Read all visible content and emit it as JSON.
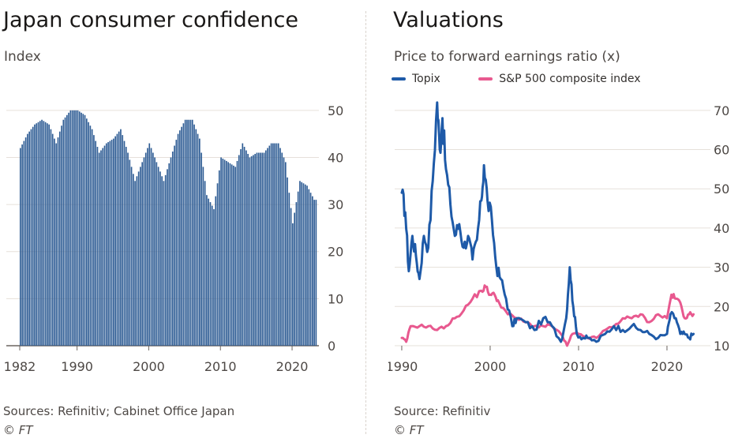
{
  "left": {
    "title": "Japan consumer confidence",
    "subtitle": "Index",
    "source": "Sources: Refinitiv; Cabinet Office Japan",
    "copyright": "© FT"
  },
  "right": {
    "title": "Valuations",
    "subtitle": "Price to forward earnings ratio (x)",
    "source": "Source: Refinitiv",
    "copyright": "© FT",
    "legend": [
      {
        "name": "Topix",
        "color": "#1e5aa8"
      },
      {
        "name": "S&P 500 composite index",
        "color": "#e8598f"
      }
    ]
  },
  "chart_data": [
    {
      "type": "bar",
      "title": "Japan consumer confidence",
      "ylabel": "Index",
      "ylim": [
        0,
        55
      ],
      "yticks": [
        0,
        10,
        20,
        30,
        40,
        50
      ],
      "xticks": [
        "1982",
        "1990",
        "2000",
        "2010",
        "2020"
      ],
      "grid": true,
      "bar_color": "#2e5c94",
      "x_start": 1982,
      "x_end": 2023.3,
      "series": [
        {
          "values": [
            [
              1982,
              42
            ],
            [
              1983,
              45
            ],
            [
              1984,
              47
            ],
            [
              1985,
              48
            ],
            [
              1986,
              47
            ],
            [
              1987,
              43
            ],
            [
              1988,
              48
            ],
            [
              1989,
              50
            ],
            [
              1990,
              50
            ],
            [
              1991,
              49
            ],
            [
              1992,
              46
            ],
            [
              1993,
              41
            ],
            [
              1994,
              43
            ],
            [
              1995,
              44
            ],
            [
              1996,
              46
            ],
            [
              1997,
              41
            ],
            [
              1998,
              35
            ],
            [
              1999,
              39
            ],
            [
              2000,
              43
            ],
            [
              2001,
              39
            ],
            [
              2002,
              35
            ],
            [
              2003,
              40
            ],
            [
              2004,
              45
            ],
            [
              2005,
              48
            ],
            [
              2006,
              48
            ],
            [
              2007,
              44
            ],
            [
              2008,
              32
            ],
            [
              2009,
              29
            ],
            [
              2010,
              40
            ],
            [
              2011,
              39
            ],
            [
              2012,
              38
            ],
            [
              2013,
              43
            ],
            [
              2014,
              40
            ],
            [
              2015,
              41
            ],
            [
              2016,
              41
            ],
            [
              2017,
              43
            ],
            [
              2018,
              43
            ],
            [
              2019,
              39
            ],
            [
              2020,
              26
            ],
            [
              2021,
              35
            ],
            [
              2022,
              34
            ],
            [
              2023,
              31
            ]
          ]
        }
      ]
    },
    {
      "type": "line",
      "title": "Valuations",
      "ylabel": "Price to forward earnings ratio (x)",
      "ylim": [
        10,
        75
      ],
      "yticks": [
        10,
        20,
        30,
        40,
        50,
        60,
        70
      ],
      "xticks": [
        "1990",
        "2000",
        "2010",
        "2020"
      ],
      "grid": true,
      "legend_position": "top-left",
      "series": [
        {
          "name": "Topix",
          "color": "#1e5aa8",
          "x": [
            1990,
            1990.4,
            1990.8,
            1991.2,
            1991.6,
            1992.0,
            1992.5,
            1993.0,
            1993.5,
            1994.0,
            1994.3,
            1994.6,
            1995.0,
            1995.5,
            1996.0,
            1996.5,
            1997.0,
            1997.5,
            1998.0,
            1998.5,
            1999.0,
            1999.3,
            1999.7,
            2000.2,
            2000.7,
            2001.2,
            2001.8,
            2002.5,
            2003.0,
            2004.0,
            2005.0,
            2006.0,
            2007.0,
            2008.0,
            2008.6,
            2009.0,
            2009.4,
            2009.8,
            2010.5,
            2011.0,
            2012.0,
            2013.0,
            2014.0,
            2015.0,
            2016.0,
            2017.0,
            2018.0,
            2019.0,
            2020.0,
            2020.4,
            2021.0,
            2021.5,
            2022.0,
            2022.5,
            2023.0
          ],
          "y": [
            49,
            44,
            29,
            38,
            33,
            27,
            38,
            35,
            52,
            72,
            60,
            68,
            55,
            46,
            38,
            41,
            35,
            38,
            32,
            37,
            47,
            56,
            47,
            42,
            30,
            27,
            22,
            15,
            17,
            16,
            14,
            17,
            15,
            11,
            17,
            30,
            20,
            13,
            12,
            12,
            11,
            13,
            15,
            14,
            15,
            14,
            13,
            12,
            13,
            18,
            17,
            13,
            13,
            12,
            13
          ]
        },
        {
          "name": "S&P 500 composite index",
          "color": "#e8598f",
          "x": [
            1990,
            1990.5,
            1991,
            1992,
            1993,
            1994,
            1995,
            1996,
            1997,
            1998,
            1999,
            1999.5,
            2000,
            2000.5,
            2001,
            2002,
            2003,
            2004,
            2005,
            2006,
            2007,
            2008,
            2008.7,
            2009.3,
            2010,
            2011,
            2012,
            2013,
            2014,
            2015,
            2016,
            2017,
            2018,
            2019,
            2020,
            2020.5,
            2021,
            2021.5,
            2022,
            2022.5,
            2023
          ],
          "y": [
            12,
            11,
            15,
            15,
            15,
            14,
            15,
            17,
            19,
            22,
            24,
            25,
            23,
            23,
            21,
            18,
            17,
            16,
            15,
            15,
            15,
            13,
            10,
            13,
            13,
            12,
            12,
            14,
            15,
            17,
            17,
            18,
            16,
            18,
            17,
            23,
            22,
            21,
            17,
            18,
            18
          ]
        }
      ]
    }
  ]
}
